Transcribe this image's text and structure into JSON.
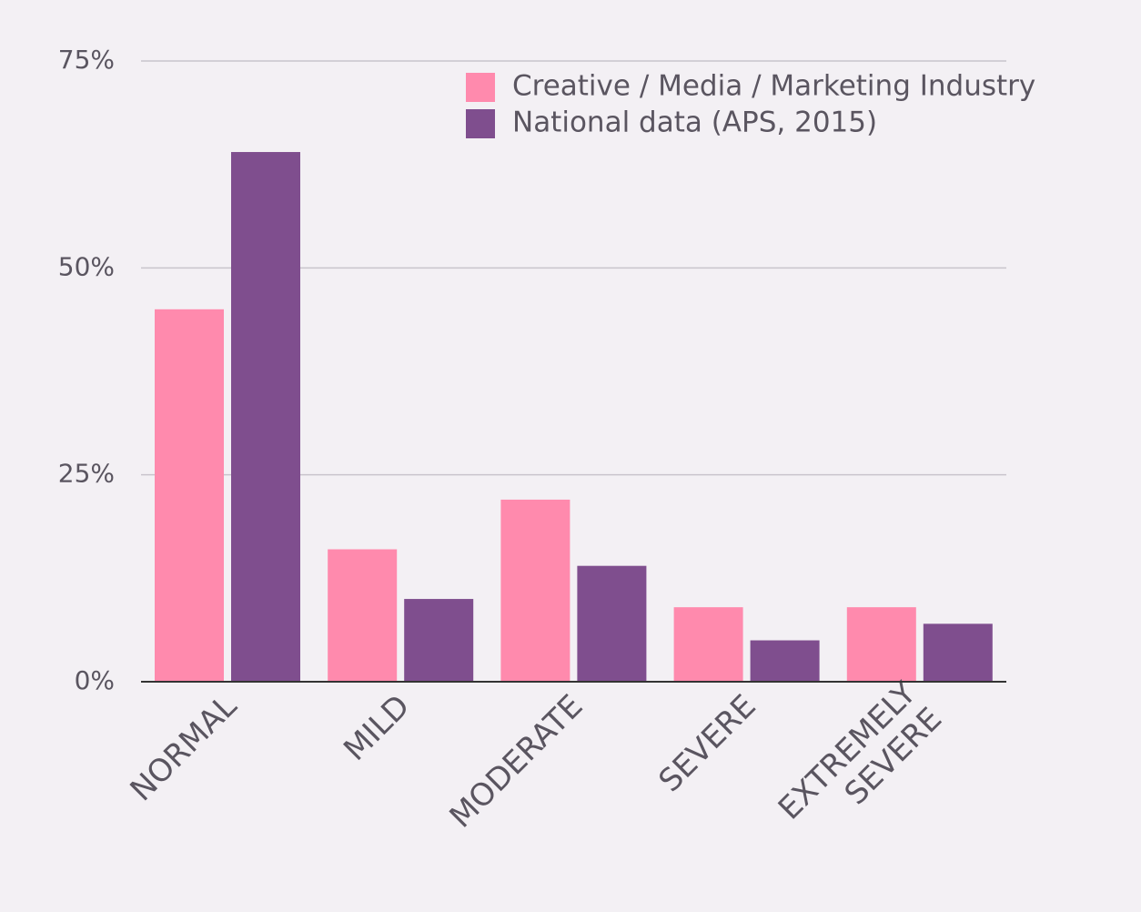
{
  "chart_data": {
    "type": "bar",
    "title": "",
    "xlabel": "",
    "ylabel": "",
    "categories": [
      [
        "NORMAL"
      ],
      [
        "MILD"
      ],
      [
        "MODERATE"
      ],
      [
        "SEVERE"
      ],
      [
        "EXTREMELY",
        "SEVERE"
      ]
    ],
    "category_ids": [
      "normal",
      "mild",
      "moderate",
      "severe",
      "extremely-severe"
    ],
    "series": [
      {
        "name": "Creative / Media / Marketing Industry",
        "color": "#ff8aad",
        "values": [
          45,
          16,
          22,
          9,
          9
        ]
      },
      {
        "name": "National data (APS, 2015)",
        "color": "#7f4e8e",
        "values": [
          64,
          10,
          14,
          5,
          7
        ]
      }
    ],
    "ylim": [
      0,
      75
    ],
    "yticks": [
      0,
      25,
      50,
      75
    ],
    "ytick_labels": [
      "0%",
      "25%",
      "50%",
      "75%"
    ],
    "grid": true,
    "legend_position": "top-right"
  }
}
